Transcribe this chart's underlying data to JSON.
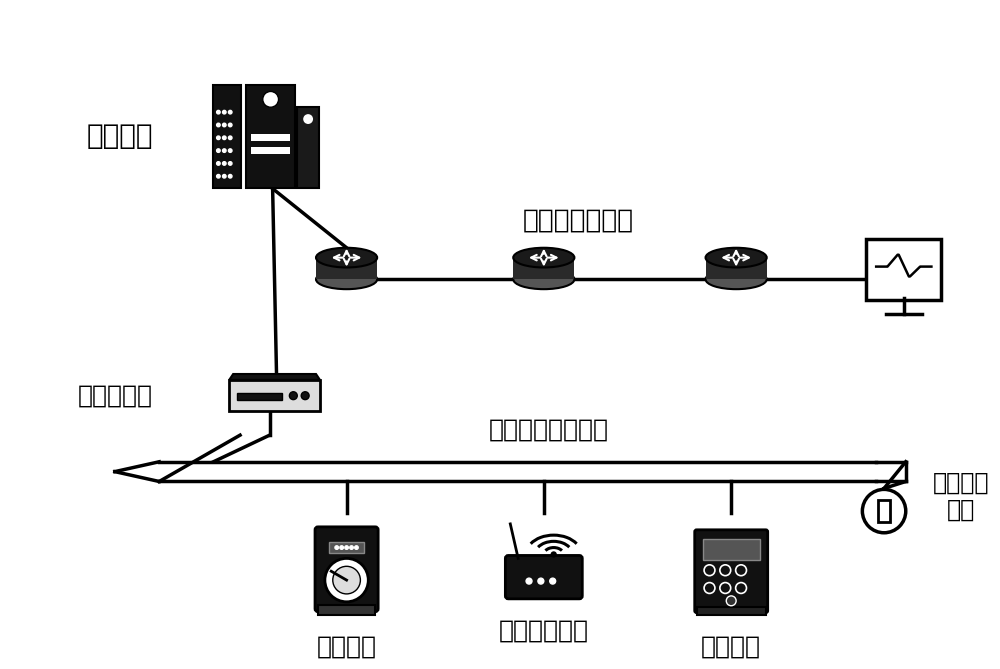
{
  "bg_color": "#ffffff",
  "text_color": "#000000",
  "labels": {
    "control_center": "控制中心",
    "computer_network": "计算机通信网络",
    "bus_controller": "总线控制器",
    "serial_network": "串行通信总线网络",
    "terminal_resistor": "终端匹配\n电阻",
    "meter": "量测仪表",
    "intrusion_device": "物理入侵设备",
    "electronic_instrument": "电子仪器"
  },
  "figsize": [
    10.0,
    6.69
  ],
  "dpi": 100
}
